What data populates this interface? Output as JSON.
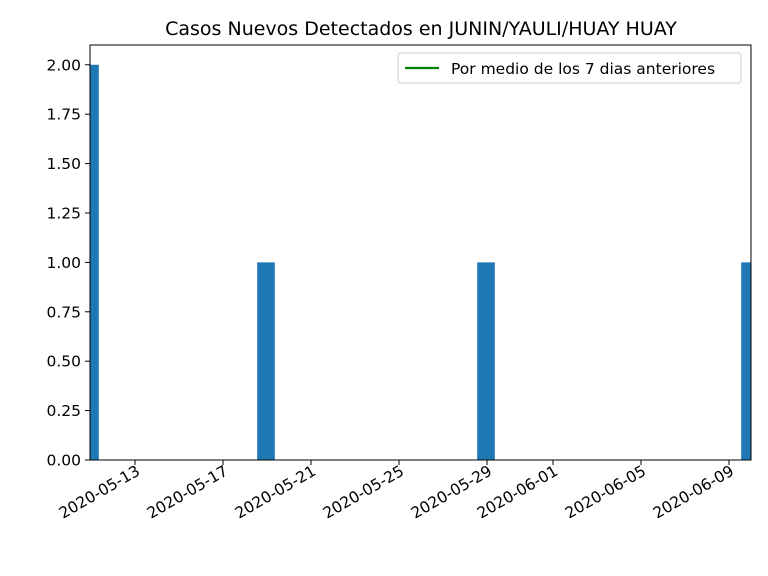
{
  "chart_data": {
    "type": "bar",
    "title": "Casos Nuevos Detectados en JUNIN/YAULI/HUAY HUAY",
    "xlabel": "",
    "ylabel": "",
    "x_axis": {
      "type": "date",
      "range": [
        "2020-05-11",
        "2020-06-10"
      ],
      "tick_labels": [
        "2020-05-13",
        "2020-05-17",
        "2020-05-21",
        "2020-05-25",
        "2020-05-29",
        "2020-06-01",
        "2020-06-05",
        "2020-06-09"
      ]
    },
    "y_axis": {
      "range": [
        0,
        2.1
      ],
      "tick_labels": [
        "0.00",
        "0.25",
        "0.50",
        "0.75",
        "1.00",
        "1.25",
        "1.50",
        "1.75",
        "2.00"
      ]
    },
    "grid": false,
    "legend": {
      "placement": "top-right",
      "entries": [
        {
          "label": "Por medio de los 7 dias anteriores",
          "color": "#008000"
        }
      ]
    },
    "series": [
      {
        "color": "#1f77b4",
        "points": [
          {
            "x": "2020-05-11",
            "y": 2
          },
          {
            "x": "2020-05-19",
            "y": 1
          },
          {
            "x": "2020-05-29",
            "y": 1
          },
          {
            "x": "2020-06-10",
            "y": 1
          }
        ]
      }
    ]
  }
}
